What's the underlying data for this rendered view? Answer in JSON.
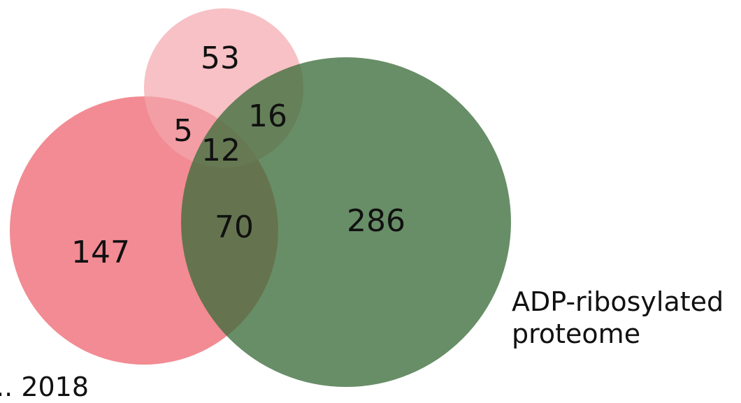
{
  "diagram": {
    "sets": [
      {
        "id": "large-red",
        "color": "#f07780",
        "label_lines": [
          "... 2018"
        ]
      },
      {
        "id": "small-pink",
        "color": "#f4a6ad",
        "label_lines": []
      },
      {
        "id": "green",
        "color": "#3e6e3c",
        "label_lines": [
          "ADP-ribosylated",
          "proteome"
        ]
      }
    ],
    "regions": {
      "red_only": "147",
      "pink_only": "53",
      "green_only": "286",
      "red_pink": "5",
      "pink_green": "16",
      "red_green": "70",
      "all_three": "12"
    }
  }
}
